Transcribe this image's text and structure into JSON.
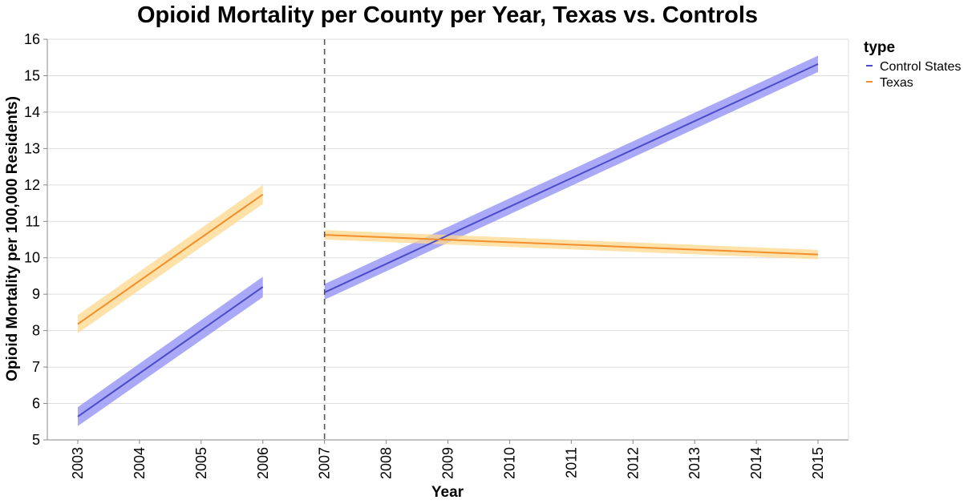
{
  "chart_data": {
    "type": "line",
    "title": "Opioid Mortality per County per Year, Texas vs. Controls",
    "xlabel": "Year",
    "ylabel": "Opioid Mortality per 100,000 Residents)",
    "xlim": [
      2003,
      2015
    ],
    "ylim": [
      5,
      16
    ],
    "x_ticks": [
      "2003",
      "2004",
      "2005",
      "2006",
      "2007",
      "2008",
      "2009",
      "2010",
      "2011",
      "2012",
      "2013",
      "2014",
      "2015"
    ],
    "y_ticks": [
      "5",
      "6",
      "7",
      "8",
      "9",
      "10",
      "11",
      "12",
      "13",
      "14",
      "15",
      "16"
    ],
    "grid": true,
    "policy_line_x": 2007,
    "legend": {
      "title": "type",
      "position": "top-right",
      "entries": [
        "Control States",
        "Texas"
      ]
    },
    "series": [
      {
        "name": "Control States",
        "line_color": "#4c4cc8",
        "band_color": "#8c8cf5",
        "segments": [
          {
            "x": [
              2003,
              2006
            ],
            "y": [
              5.64,
              9.2
            ],
            "ci_low": [
              5.38,
              8.92
            ],
            "ci_high": [
              5.9,
              9.48
            ]
          },
          {
            "x": [
              2007,
              2015
            ],
            "y": [
              9.05,
              15.32
            ],
            "ci_low": [
              8.85,
              15.1
            ],
            "ci_high": [
              9.28,
              15.55
            ]
          }
        ]
      },
      {
        "name": "Texas",
        "line_color": "#f28e2b",
        "band_color": "#fdd88c",
        "segments": [
          {
            "x": [
              2003,
              2006
            ],
            "y": [
              8.18,
              11.74
            ],
            "ci_low": [
              7.93,
              11.48
            ],
            "ci_high": [
              8.43,
              12.0
            ]
          },
          {
            "x": [
              2007,
              2015
            ],
            "y": [
              10.63,
              10.09
            ],
            "ci_low": [
              10.5,
              9.96
            ],
            "ci_high": [
              10.76,
              10.22
            ]
          }
        ]
      }
    ]
  }
}
